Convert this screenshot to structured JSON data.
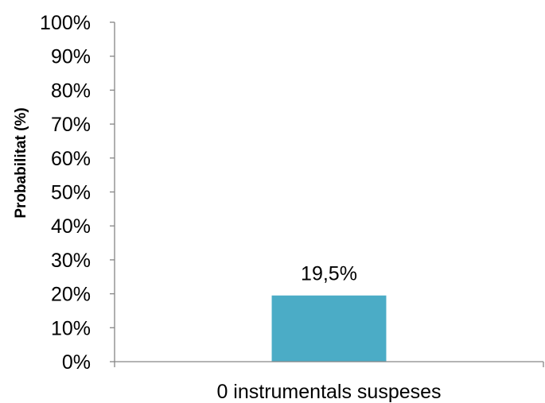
{
  "chart_data": {
    "type": "bar",
    "categories": [
      "0 instrumentals suspeses"
    ],
    "values": [
      19.5
    ],
    "data_labels": [
      "19,5%"
    ],
    "ylabel": "Probabilitat (%)",
    "xlabel": "",
    "ylim": [
      0,
      100
    ],
    "y_ticks": [
      0,
      10,
      20,
      30,
      40,
      50,
      60,
      70,
      80,
      90,
      100
    ],
    "y_tick_labels": [
      "0%",
      "10%",
      "20%",
      "30%",
      "40%",
      "50%",
      "60%",
      "70%",
      "80%",
      "90%",
      "100%"
    ],
    "grid": false,
    "legend": "none",
    "bar_color": "#4BACC6"
  }
}
